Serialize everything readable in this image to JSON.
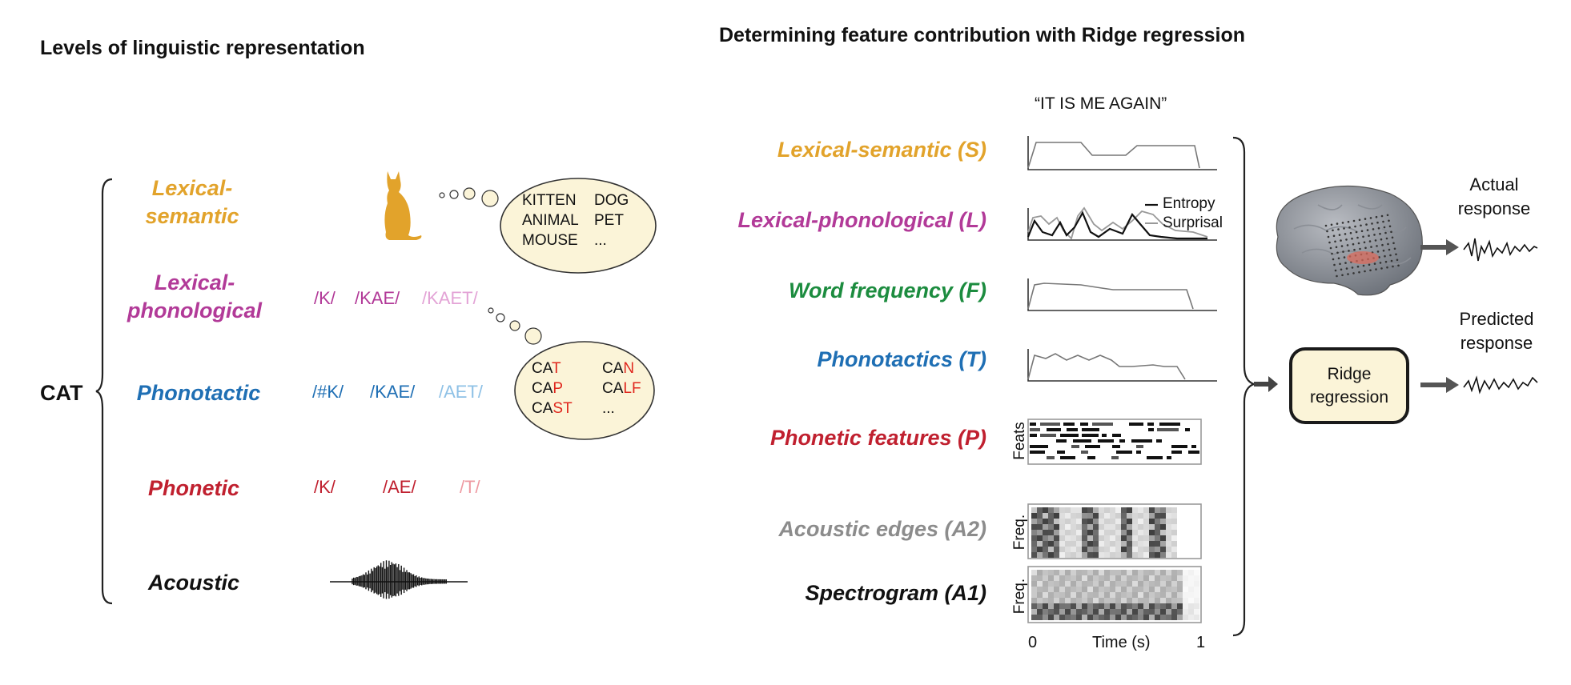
{
  "left_title": "Levels of linguistic representation",
  "right_title": "Determining feature contribution with Ridge regression",
  "word": "CAT",
  "levels": {
    "lexical_semantic": {
      "line1": "Lexical-",
      "line2": "semantic",
      "color": "#e2a32b"
    },
    "lexical_phonological": {
      "line1": "Lexical-",
      "line2": "phonological",
      "color": "#b23a98"
    },
    "phonotactic": {
      "label": "Phonotactic",
      "color": "#1f6fb4"
    },
    "phonetic": {
      "label": "Phonetic",
      "color": "#c0202f"
    },
    "acoustic": {
      "label": "Acoustic",
      "color": "#111111"
    }
  },
  "semantic_bubble": {
    "col1": [
      "KITTEN",
      "ANIMAL",
      "MOUSE"
    ],
    "col2": [
      "DOG",
      "PET",
      "..."
    ]
  },
  "lexphon_tokens": [
    "/K/",
    "/KAE/",
    "/KAET/"
  ],
  "phonotactic_tokens": [
    "/#K/",
    "/KAE/",
    "/AET/"
  ],
  "phonetic_tokens": [
    "/K/",
    "/AE/",
    "/T/"
  ],
  "phon_bubble": {
    "col1": [
      {
        "base": "CA",
        "red": "T"
      },
      {
        "base": "CA",
        "red": "P"
      },
      {
        "base": "CA",
        "red": "ST"
      }
    ],
    "col2": [
      {
        "base": "CA",
        "red": "N"
      },
      {
        "base": "CA",
        "red": "LF"
      },
      {
        "base": "...",
        "red": ""
      }
    ]
  },
  "sentence": "“IT IS  ME  AGAIN”",
  "features": [
    {
      "label": "Lexical-semantic (S)",
      "color": "#e2a32b"
    },
    {
      "label": "Lexical-phonological (L)",
      "color": "#b23a98"
    },
    {
      "label": "Word frequency (F)",
      "color": "#1c8c3f"
    },
    {
      "label": "Phonotactics (T)",
      "color": "#1f6fb4"
    },
    {
      "label": "Phonetic features (P)",
      "color": "#c0202f"
    },
    {
      "label": "Acoustic edges (A2)",
      "color": "#8c8c8c"
    },
    {
      "label": "Spectrogram (A1)",
      "color": "#111111"
    }
  ],
  "legend": {
    "entropy": "Entropy",
    "surprisal": "Surprisal"
  },
  "axis_labels": {
    "feats": "Feats",
    "freq1": "Freq.",
    "freq2": "Freq.",
    "time": "Time (s)",
    "t0": "0",
    "t1": "1"
  },
  "ridge_label": {
    "line1": "Ridge",
    "line2": "regression"
  },
  "actual_response": {
    "line1": "Actual",
    "line2": "response"
  },
  "predicted_response": {
    "line1": "Predicted",
    "line2": "response"
  },
  "icons": [
    "cat-icon",
    "brain-icon",
    "arrow-right-icon",
    "curly-brace-icon",
    "waveform-icon"
  ]
}
